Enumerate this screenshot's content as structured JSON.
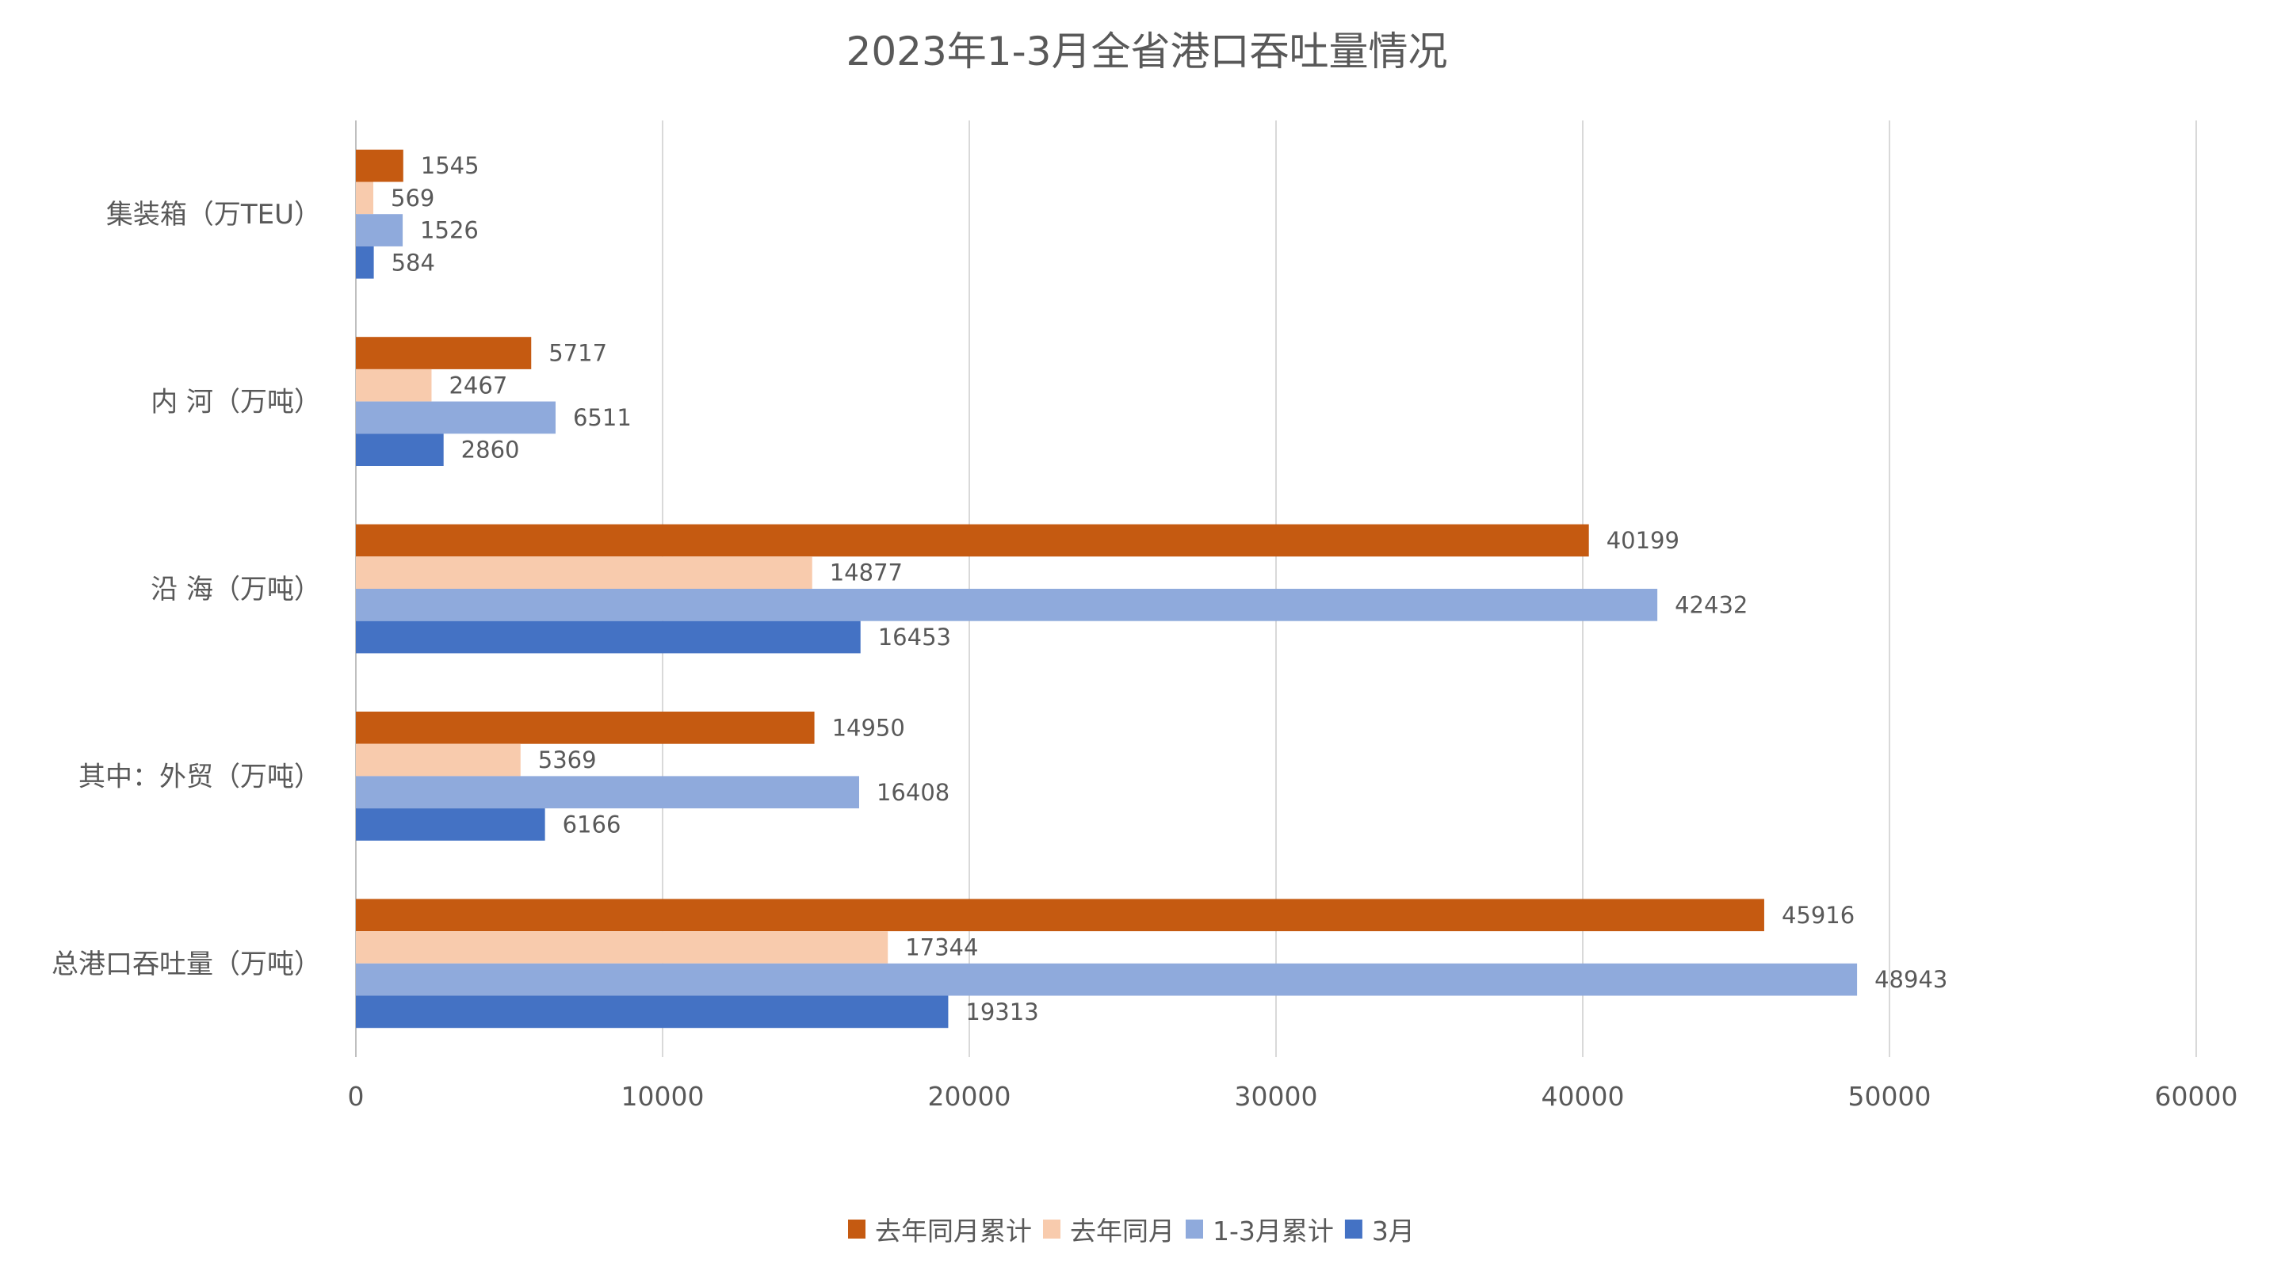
{
  "chart_data": {
    "type": "bar",
    "orientation": "horizontal",
    "title": "2023年1-3月全省港口吞吐量情况",
    "categories": [
      "集装箱（万TEU）",
      "内 河（万吨）",
      "沿 海（万吨）",
      "其中：外贸（万吨）",
      "总港口吞吐量（万吨）"
    ],
    "series": [
      {
        "name": "去年同月累计",
        "color": "#C55A11",
        "values": [
          1545,
          5717,
          40199,
          14950,
          45916
        ]
      },
      {
        "name": "去年同月",
        "color": "#F8CBAD",
        "values": [
          569,
          2467,
          14877,
          5369,
          17344
        ]
      },
      {
        "name": "1-3月累计",
        "color": "#8FAADC",
        "values": [
          1526,
          6511,
          42432,
          16408,
          48943
        ]
      },
      {
        "name": "3月",
        "color": "#4472C4",
        "values": [
          584,
          2860,
          16453,
          6166,
          19313
        ]
      }
    ],
    "xlim": [
      0,
      60000
    ],
    "xticks": [
      "0",
      "10000",
      "20000",
      "30000",
      "40000",
      "50000",
      "60000"
    ],
    "grid": true,
    "legend_position": "bottom",
    "data_labels": true
  }
}
